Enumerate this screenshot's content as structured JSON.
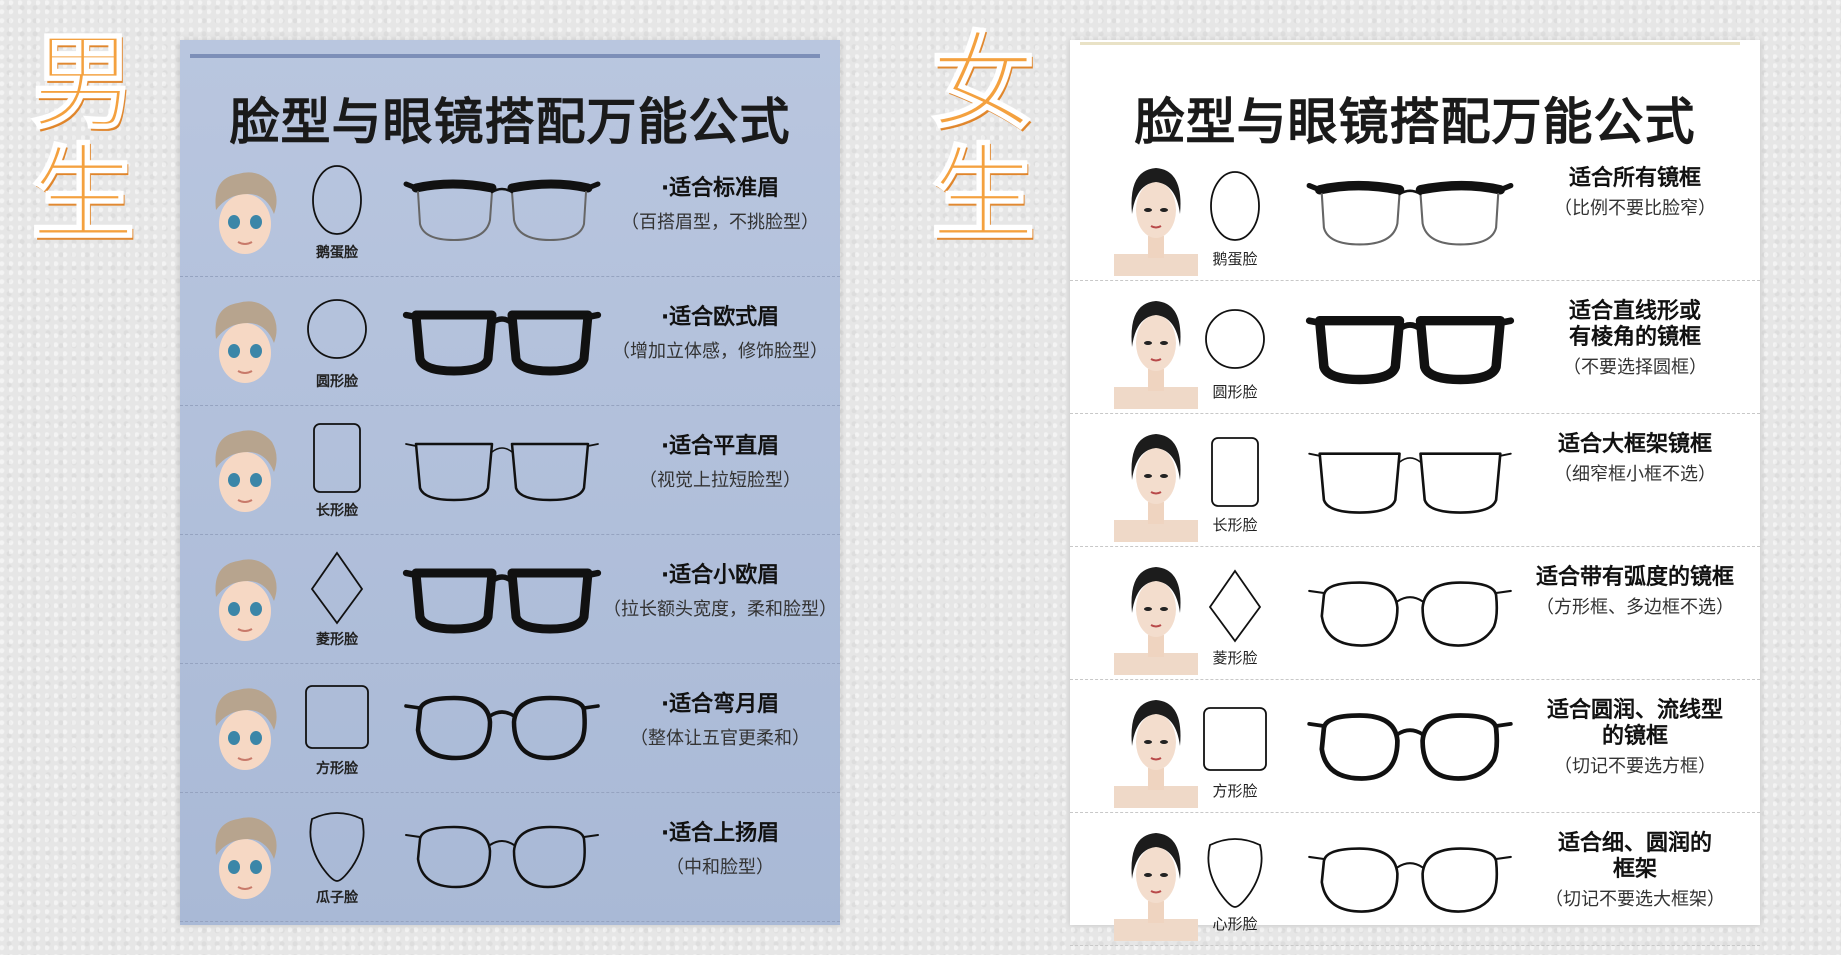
{
  "male": {
    "side_label": [
      "男",
      "生"
    ],
    "title": "脸型与眼镜搭配万能公式",
    "rows": [
      {
        "face": "鹅蛋脸",
        "shape": "oval",
        "glasses": "browline-half",
        "main": "·适合标准眉",
        "sub": "（百搭眉型，不挑脸型）"
      },
      {
        "face": "圆形脸",
        "shape": "circle",
        "glasses": "thick-square",
        "main": "·适合欧式眉",
        "sub": "（增加立体感，修饰脸型）"
      },
      {
        "face": "长形脸",
        "shape": "tall-rect",
        "glasses": "thin-square",
        "main": "·适合平直眉",
        "sub": "（视觉上拉短脸型）"
      },
      {
        "face": "菱形脸",
        "shape": "diamond",
        "glasses": "thick-square",
        "main": "·适合小欧眉",
        "sub": "（拉长额头宽度，柔和脸型）"
      },
      {
        "face": "方形脸",
        "shape": "square",
        "glasses": "round-plastic",
        "main": "·适合弯月眉",
        "sub": "（整体让五官更柔和）"
      },
      {
        "face": "瓜子脸",
        "shape": "heart",
        "glasses": "round-metal",
        "main": "·适合上扬眉",
        "sub": "（中和脸型）"
      }
    ]
  },
  "female": {
    "side_label": [
      "女",
      "生"
    ],
    "title": "脸型与眼镜搭配万能公式",
    "rows": [
      {
        "face": "鹅蛋脸",
        "shape": "oval",
        "glasses": "browline-half",
        "main": [
          "适合所有镜框"
        ],
        "sub": "（比例不要比脸窄）"
      },
      {
        "face": "圆形脸",
        "shape": "circle",
        "glasses": "thick-square",
        "main": [
          "适合直线形或",
          "有棱角的镜框"
        ],
        "sub": "（不要选择圆框）"
      },
      {
        "face": "长形脸",
        "shape": "tall-rect",
        "glasses": "thin-square",
        "main": [
          "适合大框架镜框"
        ],
        "sub": "（细窄框小框不选）"
      },
      {
        "face": "菱形脸",
        "shape": "diamond",
        "glasses": "round-metal",
        "main": [
          "适合带有弧度的镜框"
        ],
        "sub": "（方形框、多边框不选）"
      },
      {
        "face": "方形脸",
        "shape": "square",
        "glasses": "round-plastic",
        "main": [
          "适合圆润、流线型",
          "的镜框"
        ],
        "sub": "（切记不要选方框）"
      },
      {
        "face": "心形脸",
        "shape": "heart",
        "glasses": "round-metal",
        "main": [
          "适合细、圆润的",
          "框架"
        ],
        "sub": "（切记不要选大框架）"
      }
    ]
  },
  "colors": {
    "label_orange": "#f4a13f",
    "male_poster_bg": "#b3c2dc",
    "female_poster_bg": "#ffffff",
    "frame_black": "#111111"
  }
}
